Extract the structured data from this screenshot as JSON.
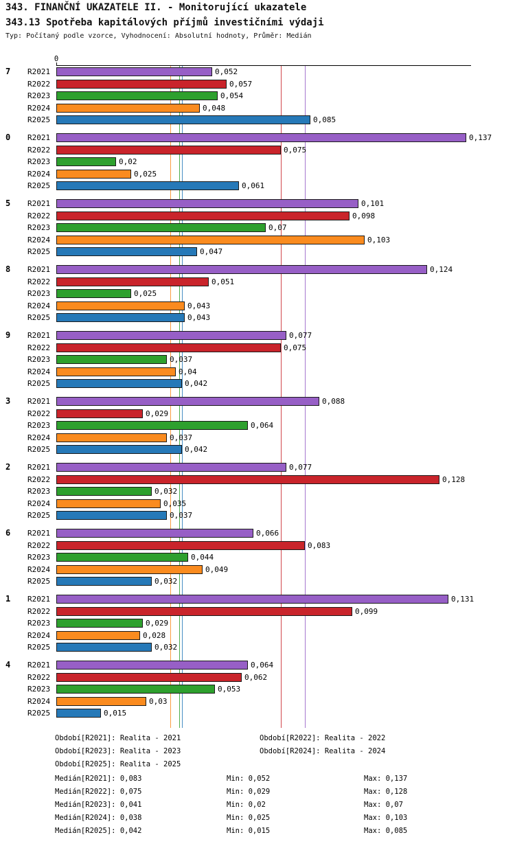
{
  "chart_data": {
    "type": "bar",
    "orientation": "horizontal",
    "title": "343. FINANČNÍ UKAZATELE II. - Monitorující ukazatele",
    "subtitle": "343.13 Spotřeba kapitálových příjmů investičními výdaji",
    "meta": "Typ: Počítaný podle vzorce, Vyhodnocení: Absolutní hodnoty, Průměr: Medián",
    "value_format": "czech-decimal-comma",
    "axis": {
      "origin_tick": "0",
      "xmin": 0,
      "xmax": 0.1382,
      "grid": false
    },
    "series": [
      {
        "name": "R2021",
        "color": "#975FC6",
        "median": "0,083"
      },
      {
        "name": "R2022",
        "color": "#C9242B",
        "median": "0,075"
      },
      {
        "name": "R2023",
        "color": "#2EA02E",
        "median": "0,041"
      },
      {
        "name": "R2024",
        "color": "#FA8B1F",
        "median": "0,038"
      },
      {
        "name": "R2025",
        "color": "#2679B8",
        "median": "0,042"
      }
    ],
    "groups": [
      {
        "label": "7",
        "values": [
          "0,052",
          "0,057",
          "0,054",
          "0,048",
          "0,085"
        ]
      },
      {
        "label": "0",
        "values": [
          "0,137",
          "0,075",
          "0,02",
          "0,025",
          "0,061"
        ]
      },
      {
        "label": "5",
        "values": [
          "0,101",
          "0,098",
          "0,07",
          "0,103",
          "0,047"
        ]
      },
      {
        "label": "8",
        "values": [
          "0,124",
          "0,051",
          "0,025",
          "0,043",
          "0,043"
        ]
      },
      {
        "label": "9",
        "values": [
          "0,077",
          "0,075",
          "0,037",
          "0,04",
          "0,042"
        ]
      },
      {
        "label": "3",
        "values": [
          "0,088",
          "0,029",
          "0,064",
          "0,037",
          "0,042"
        ]
      },
      {
        "label": "2",
        "values": [
          "0,077",
          "0,128",
          "0,032",
          "0,035",
          "0,037"
        ]
      },
      {
        "label": "6",
        "values": [
          "0,066",
          "0,083",
          "0,044",
          "0,049",
          "0,032"
        ]
      },
      {
        "label": "1",
        "values": [
          "0,131",
          "0,099",
          "0,029",
          "0,028",
          "0,032"
        ]
      },
      {
        "label": "4",
        "values": [
          "0,064",
          "0,062",
          "0,053",
          "0,03",
          "0,015"
        ]
      }
    ],
    "legend": {
      "periods": [
        {
          "label": "Období[R2021]:",
          "value": "Realita - 2021"
        },
        {
          "label": "Období[R2022]:",
          "value": "Realita - 2022"
        },
        {
          "label": "Období[R2023]:",
          "value": "Realita - 2023"
        },
        {
          "label": "Období[R2024]:",
          "value": "Realita - 2024"
        },
        {
          "label": "Období[R2025]:",
          "value": "Realita - 2025"
        }
      ],
      "stats": [
        {
          "median_label": "Medián[R2021]:",
          "median_value": "0,083",
          "min_label": "Min:",
          "min_value": "0,052",
          "max_label": "Max:",
          "max_value": "0,137"
        },
        {
          "median_label": "Medián[R2022]:",
          "median_value": "0,075",
          "min_label": "Min:",
          "min_value": "0,029",
          "max_label": "Max:",
          "max_value": "0,128"
        },
        {
          "median_label": "Medián[R2023]:",
          "median_value": "0,041",
          "min_label": "Min:",
          "min_value": "0,02",
          "max_label": "Max:",
          "max_value": "0,07"
        },
        {
          "median_label": "Medián[R2024]:",
          "median_value": "0,038",
          "min_label": "Min:",
          "min_value": "0,025",
          "max_label": "Max:",
          "max_value": "0,103"
        },
        {
          "median_label": "Medián[R2025]:",
          "median_value": "0,042",
          "min_label": "Min:",
          "min_value": "0,015",
          "max_label": "Max:",
          "max_value": "0,085"
        }
      ]
    }
  }
}
